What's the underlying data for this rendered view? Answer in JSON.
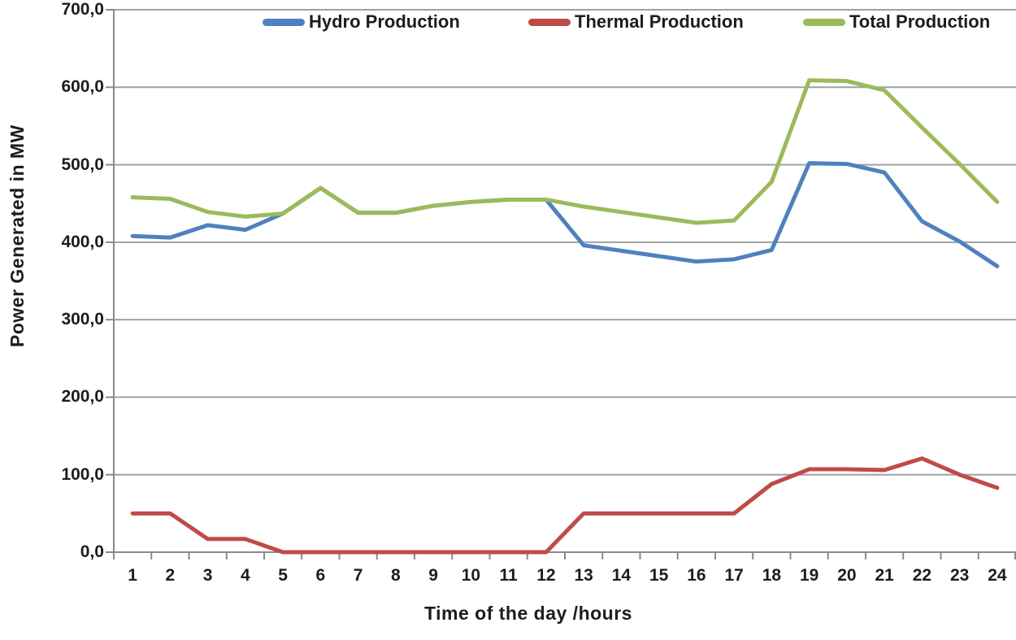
{
  "chart_data": {
    "type": "line",
    "title": "",
    "xlabel": "Time of the day /hours",
    "ylabel": "Power Generated in MW",
    "categories": [
      1,
      2,
      3,
      4,
      5,
      6,
      7,
      8,
      9,
      10,
      11,
      12,
      13,
      14,
      15,
      16,
      17,
      18,
      19,
      20,
      21,
      22,
      23,
      24
    ],
    "series": [
      {
        "name": "Hydro Production",
        "color": "#4f81bd",
        "values": [
          408,
          406,
          422,
          416,
          437,
          470,
          438,
          438,
          447,
          452,
          455,
          455,
          396,
          389,
          382,
          375,
          378,
          390,
          502,
          501,
          490,
          427,
          401,
          369
        ]
      },
      {
        "name": "Thermal Production",
        "color": "#bf4b47",
        "values": [
          50,
          50,
          17,
          17,
          0,
          0,
          0,
          0,
          0,
          0,
          0,
          0,
          50,
          50,
          50,
          50,
          50,
          88,
          107,
          107,
          106,
          121,
          100,
          83
        ]
      },
      {
        "name": "Total Production",
        "color": "#9cba5a",
        "values": [
          458,
          456,
          439,
          433,
          437,
          470,
          438,
          438,
          447,
          452,
          455,
          455,
          446,
          439,
          432,
          425,
          428,
          478,
          609,
          608,
          596,
          548,
          501,
          452
        ]
      }
    ],
    "ylim": [
      0,
      700
    ],
    "y_ticks": [
      0,
      100,
      200,
      300,
      400,
      500,
      600,
      700
    ],
    "y_tick_labels": [
      "0,0",
      "100,0",
      "200,0",
      "300,0",
      "400,0",
      "500,0",
      "600,0",
      "700,0"
    ],
    "x_tick_labels": [
      "1",
      "2",
      "3",
      "4",
      "5",
      "6",
      "7",
      "8",
      "9",
      "10",
      "11",
      "12",
      "13",
      "14",
      "15",
      "16",
      "17",
      "18",
      "19",
      "20",
      "21",
      "22",
      "23",
      "24"
    ],
    "grid": "horizontal gridlines on, vertical off",
    "legend_position": "top inside plot, horizontal"
  },
  "legend": {
    "items": [
      {
        "label": "Hydro Production",
        "color": "#4f81bd"
      },
      {
        "label": "Thermal Production",
        "color": "#bf4b47"
      },
      {
        "label": "Total Production",
        "color": "#9cba5a"
      }
    ]
  },
  "axes": {
    "y_title": "Power Generated in MW",
    "x_title": "Time of the day /hours"
  },
  "colors": {
    "background": "#ffffff",
    "gridline": "#a0a0a0",
    "axis_line": "#8a8a8a",
    "text": "#1a1d22",
    "hydro_blue": "#4f81bd",
    "thermal_red": "#bf4b47",
    "total_green": "#9cba5a"
  }
}
